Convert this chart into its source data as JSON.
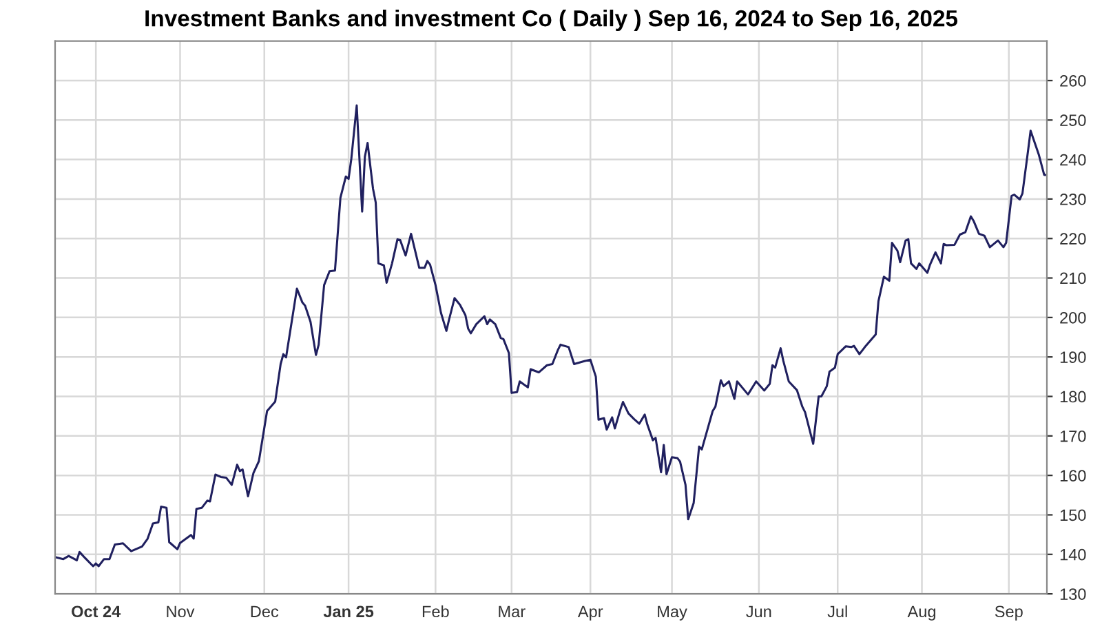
{
  "chart_data": {
    "type": "line",
    "title": "Investment Banks and investment Co ( Daily ) Sep 16, 2024 to Sep 16, 2025",
    "x": [
      "2024-09-16",
      "2024-09-19",
      "2024-09-21",
      "2024-09-24",
      "2024-09-25",
      "2024-09-27",
      "2024-09-30",
      "2024-10-01",
      "2024-10-02",
      "2024-10-04",
      "2024-10-06",
      "2024-10-08",
      "2024-10-11",
      "2024-10-14",
      "2024-10-18",
      "2024-10-20",
      "2024-10-22",
      "2024-10-24",
      "2024-10-25",
      "2024-10-27",
      "2024-10-28",
      "2024-10-31",
      "2024-11-01",
      "2024-11-05",
      "2024-11-06",
      "2024-11-07",
      "2024-11-09",
      "2024-11-11",
      "2024-11-12",
      "2024-11-14",
      "2024-11-16",
      "2024-11-18",
      "2024-11-20",
      "2024-11-22",
      "2024-11-23",
      "2024-11-24",
      "2024-11-26",
      "2024-11-28",
      "2024-11-30",
      "2024-12-03",
      "2024-12-06",
      "2024-12-08",
      "2024-12-09",
      "2024-12-10",
      "2024-12-14",
      "2024-12-16",
      "2024-12-17",
      "2024-12-19",
      "2024-12-21",
      "2024-12-22",
      "2024-12-24",
      "2024-12-26",
      "2024-12-28",
      "2024-12-30",
      "2025-01-01",
      "2025-01-02",
      "2025-01-03",
      "2025-01-05",
      "2025-01-07",
      "2025-01-08",
      "2025-01-09",
      "2025-01-11",
      "2025-01-12",
      "2025-01-13",
      "2025-01-15",
      "2025-01-16",
      "2025-01-18",
      "2025-01-20",
      "2025-01-21",
      "2025-01-23",
      "2025-01-25",
      "2025-01-28",
      "2025-01-30",
      "2025-01-31",
      "2025-02-01",
      "2025-02-03",
      "2025-02-05",
      "2025-02-07",
      "2025-02-08",
      "2025-02-10",
      "2025-02-12",
      "2025-02-14",
      "2025-02-15",
      "2025-02-16",
      "2025-02-18",
      "2025-02-21",
      "2025-02-22",
      "2025-02-23",
      "2025-02-25",
      "2025-02-27",
      "2025-02-28",
      "2025-03-02",
      "2025-03-03",
      "2025-03-05",
      "2025-03-06",
      "2025-03-09",
      "2025-03-10",
      "2025-03-13",
      "2025-03-16",
      "2025-03-18",
      "2025-03-20",
      "2025-03-21",
      "2025-03-24",
      "2025-03-26",
      "2025-03-30",
      "2025-04-01",
      "2025-04-03",
      "2025-04-04",
      "2025-04-06",
      "2025-04-07",
      "2025-04-09",
      "2025-04-10",
      "2025-04-12",
      "2025-04-13",
      "2025-04-15",
      "2025-04-17",
      "2025-04-19",
      "2025-04-21",
      "2025-04-22",
      "2025-04-24",
      "2025-04-25",
      "2025-04-27",
      "2025-04-28",
      "2025-04-29",
      "2025-05-01",
      "2025-05-03",
      "2025-05-04",
      "2025-05-06",
      "2025-05-07",
      "2025-05-09",
      "2025-05-11",
      "2025-05-12",
      "2025-05-16",
      "2025-05-17",
      "2025-05-19",
      "2025-05-20",
      "2025-05-22",
      "2025-05-24",
      "2025-05-25",
      "2025-05-29",
      "2025-06-01",
      "2025-06-04",
      "2025-06-06",
      "2025-06-07",
      "2025-06-08",
      "2025-06-10",
      "2025-06-11",
      "2025-06-13",
      "2025-06-16",
      "2025-06-18",
      "2025-06-19",
      "2025-06-22",
      "2025-06-24",
      "2025-06-25",
      "2025-06-27",
      "2025-06-28",
      "2025-06-30",
      "2025-07-01",
      "2025-07-04",
      "2025-07-06",
      "2025-07-07",
      "2025-07-09",
      "2025-07-11",
      "2025-07-15",
      "2025-07-16",
      "2025-07-18",
      "2025-07-20",
      "2025-07-21",
      "2025-07-23",
      "2025-07-24",
      "2025-07-26",
      "2025-07-27",
      "2025-07-28",
      "2025-07-30",
      "2025-07-31",
      "2025-08-03",
      "2025-08-04",
      "2025-08-06",
      "2025-08-08",
      "2025-08-09",
      "2025-08-10",
      "2025-08-13",
      "2025-08-15",
      "2025-08-17",
      "2025-08-19",
      "2025-08-20",
      "2025-08-22",
      "2025-08-24",
      "2025-08-26",
      "2025-08-29",
      "2025-08-31",
      "2025-09-01",
      "2025-09-03",
      "2025-09-04",
      "2025-09-06",
      "2025-09-07",
      "2025-09-09",
      "2025-09-10",
      "2025-09-13",
      "2025-09-15",
      "2025-09-16"
    ],
    "series": [
      {
        "color": "#20205f",
        "values": [
          139.3,
          138.8,
          139.6,
          138.5,
          140.6,
          139.1,
          137.0,
          137.7,
          137.0,
          138.8,
          138.8,
          142.5,
          142.8,
          140.8,
          142.0,
          143.9,
          147.8,
          148.1,
          152.1,
          151.8,
          143.1,
          141.3,
          142.9,
          144.9,
          144.0,
          151.5,
          151.8,
          153.6,
          153.4,
          160.2,
          159.6,
          159.4,
          157.6,
          162.7,
          161.1,
          161.5,
          154.7,
          160.6,
          163.6,
          176.3,
          178.7,
          188.2,
          190.7,
          189.9,
          207.3,
          203.8,
          203.0,
          198.9,
          190.5,
          193.1,
          208.2,
          211.7,
          211.9,
          230.3,
          235.7,
          235.1,
          240.1,
          253.7,
          226.8,
          240.7,
          244.2,
          232.6,
          229.1,
          213.7,
          213.2,
          208.8,
          213.7,
          219.8,
          219.6,
          215.7,
          221.2,
          212.6,
          212.6,
          214.3,
          213.4,
          208.2,
          201.2,
          196.6,
          199.5,
          204.9,
          203.2,
          200.6,
          197.2,
          196.0,
          198.3,
          200.3,
          198.3,
          199.5,
          198.3,
          194.8,
          194.5,
          191.0,
          180.9,
          181.1,
          183.8,
          182.3,
          186.9,
          186.1,
          187.9,
          188.2,
          191.7,
          193.1,
          192.5,
          188.2,
          189.0,
          189.3,
          185.0,
          174.1,
          174.5,
          171.6,
          174.7,
          171.9,
          176.6,
          178.6,
          175.7,
          174.3,
          173.1,
          175.4,
          172.8,
          168.9,
          169.5,
          160.8,
          167.7,
          160.3,
          164.6,
          164.4,
          163.5,
          157.6,
          148.9,
          153.0,
          167.3,
          166.6,
          176.3,
          177.4,
          184.1,
          182.6,
          183.8,
          179.4,
          183.8,
          180.5,
          183.8,
          181.5,
          183.2,
          187.9,
          187.3,
          192.2,
          189.0,
          183.8,
          181.6,
          177.4,
          176.0,
          168.0,
          180.0,
          180.0,
          182.6,
          186.3,
          187.3,
          190.7,
          192.7,
          192.5,
          192.8,
          190.7,
          192.5,
          195.7,
          204.1,
          210.3,
          209.3,
          218.9,
          216.9,
          214.0,
          219.5,
          219.8,
          213.7,
          212.3,
          213.7,
          211.3,
          213.4,
          216.5,
          213.7,
          218.6,
          218.3,
          218.4,
          221.0,
          221.6,
          225.6,
          224.5,
          221.2,
          220.7,
          217.8,
          219.5,
          217.8,
          218.9,
          230.8,
          231.1,
          229.9,
          231.4,
          241.9,
          247.3,
          241.3,
          236.1,
          236.1
        ]
      }
    ],
    "xlim": [
      "2024-09-16",
      "2025-09-16"
    ],
    "xticks": [
      {
        "value": "2024-10-01",
        "label": "Oct 24"
      },
      {
        "value": "2024-11-01",
        "label": "Nov"
      },
      {
        "value": "2024-12-02",
        "label": "Dec"
      },
      {
        "value": "2025-01-02",
        "label": "Jan 25"
      },
      {
        "value": "2025-02-03",
        "label": "Feb"
      },
      {
        "value": "2025-03-03",
        "label": "Mar"
      },
      {
        "value": "2025-04-01",
        "label": "Apr"
      },
      {
        "value": "2025-05-01",
        "label": "May"
      },
      {
        "value": "2025-06-02",
        "label": "Jun"
      },
      {
        "value": "2025-07-01",
        "label": "Jul"
      },
      {
        "value": "2025-08-01",
        "label": "Aug"
      },
      {
        "value": "2025-09-02",
        "label": "Sep"
      }
    ],
    "ylim": [
      130,
      270
    ],
    "yticks": [
      130,
      140,
      150,
      160,
      170,
      180,
      190,
      200,
      210,
      220,
      230,
      240,
      250,
      260
    ],
    "grid": true,
    "marker": "none",
    "line_style": "solid"
  }
}
